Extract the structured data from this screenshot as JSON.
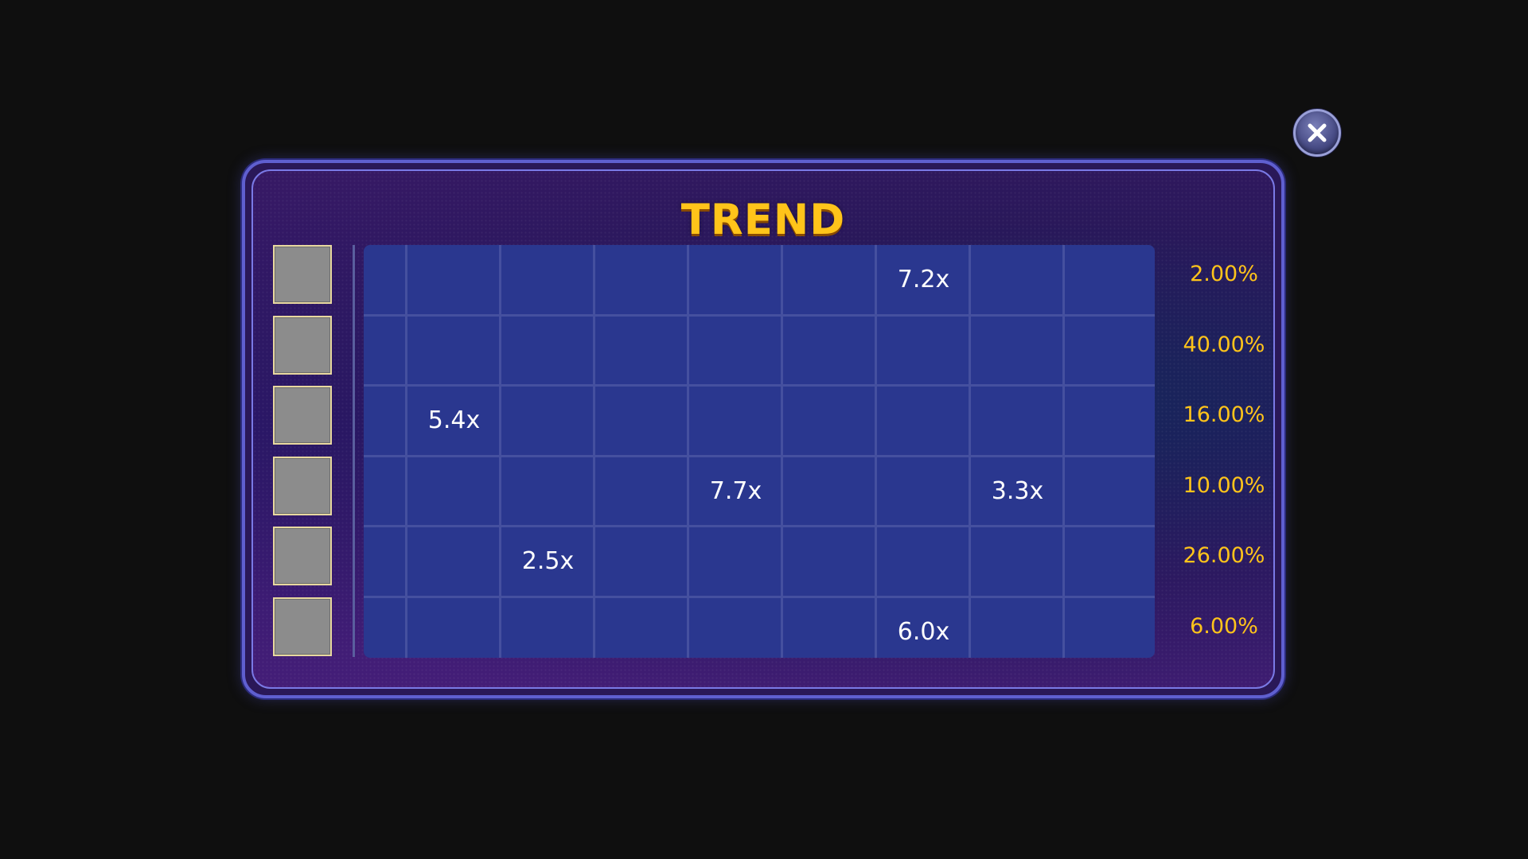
{
  "title": "TREND",
  "close_icon": "close-icon",
  "grid": {
    "columns": 8,
    "rows": 6,
    "cells": [
      {
        "row": 0,
        "col": 5,
        "value": "7.2x"
      },
      {
        "row": 2,
        "col": 0,
        "value": "5.4x"
      },
      {
        "row": 3,
        "col": 3,
        "value": "7.7x"
      },
      {
        "row": 3,
        "col": 6,
        "value": "3.3x"
      },
      {
        "row": 4,
        "col": 1,
        "value": "2.5x"
      },
      {
        "row": 5,
        "col": 5,
        "value": "6.0x"
      }
    ]
  },
  "rows": [
    {
      "percent": "2.00%",
      "swatch_color": "#8c8c8c"
    },
    {
      "percent": "40.00%",
      "swatch_color": "#8c8c8c"
    },
    {
      "percent": "16.00%",
      "swatch_color": "#8c8c8c"
    },
    {
      "percent": "10.00%",
      "swatch_color": "#8c8c8c"
    },
    {
      "percent": "26.00%",
      "swatch_color": "#8c8c8c"
    },
    {
      "percent": "6.00%",
      "swatch_color": "#8c8c8c"
    }
  ],
  "colors": {
    "title": "#ffc41a",
    "percent_text": "#ffc41a",
    "grid_background": "#2a378f",
    "panel_border": "#5f5fd0"
  }
}
